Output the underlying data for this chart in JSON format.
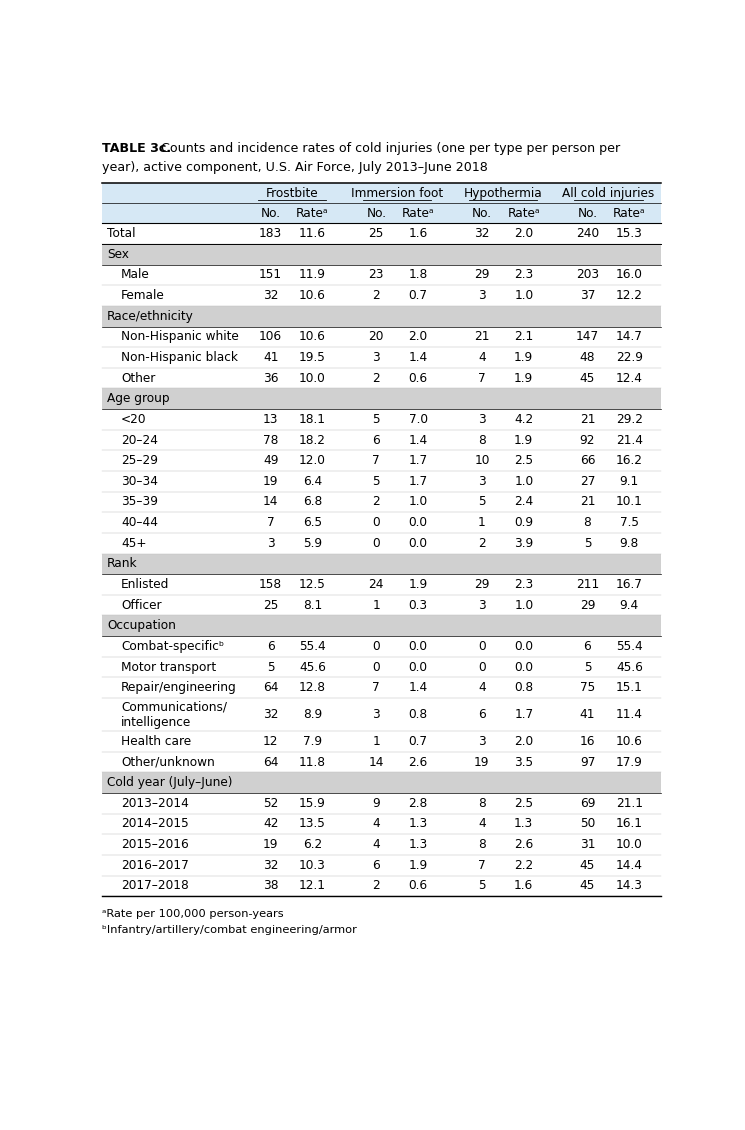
{
  "header_bg": "#d6e8f5",
  "section_bg": "#d0d0d0",
  "col_group_labels": [
    "Frostbite",
    "Immersion foot",
    "Hypothermia",
    "All cold injuries"
  ],
  "col_sub_labels": [
    "No.",
    "Rateᵃ",
    "No.",
    "Rateᵃ",
    "No.",
    "Rateᵃ",
    "No.",
    "Rateᵃ"
  ],
  "rows": [
    {
      "label": "Total",
      "indent": 0,
      "section": false,
      "data": [
        "183",
        "11.6",
        "25",
        "1.6",
        "32",
        "2.0",
        "240",
        "15.3"
      ]
    },
    {
      "label": "Sex",
      "indent": 0,
      "section": true,
      "data": []
    },
    {
      "label": "Male",
      "indent": 1,
      "section": false,
      "data": [
        "151",
        "11.9",
        "23",
        "1.8",
        "29",
        "2.3",
        "203",
        "16.0"
      ]
    },
    {
      "label": "Female",
      "indent": 1,
      "section": false,
      "data": [
        "32",
        "10.6",
        "2",
        "0.7",
        "3",
        "1.0",
        "37",
        "12.2"
      ]
    },
    {
      "label": "Race/ethnicity",
      "indent": 0,
      "section": true,
      "data": []
    },
    {
      "label": "Non-Hispanic white",
      "indent": 1,
      "section": false,
      "data": [
        "106",
        "10.6",
        "20",
        "2.0",
        "21",
        "2.1",
        "147",
        "14.7"
      ]
    },
    {
      "label": "Non-Hispanic black",
      "indent": 1,
      "section": false,
      "data": [
        "41",
        "19.5",
        "3",
        "1.4",
        "4",
        "1.9",
        "48",
        "22.9"
      ]
    },
    {
      "label": "Other",
      "indent": 1,
      "section": false,
      "data": [
        "36",
        "10.0",
        "2",
        "0.6",
        "7",
        "1.9",
        "45",
        "12.4"
      ]
    },
    {
      "label": "Age group",
      "indent": 0,
      "section": true,
      "data": []
    },
    {
      "label": "<20",
      "indent": 1,
      "section": false,
      "data": [
        "13",
        "18.1",
        "5",
        "7.0",
        "3",
        "4.2",
        "21",
        "29.2"
      ]
    },
    {
      "label": "20–24",
      "indent": 1,
      "section": false,
      "data": [
        "78",
        "18.2",
        "6",
        "1.4",
        "8",
        "1.9",
        "92",
        "21.4"
      ]
    },
    {
      "label": "25–29",
      "indent": 1,
      "section": false,
      "data": [
        "49",
        "12.0",
        "7",
        "1.7",
        "10",
        "2.5",
        "66",
        "16.2"
      ]
    },
    {
      "label": "30–34",
      "indent": 1,
      "section": false,
      "data": [
        "19",
        "6.4",
        "5",
        "1.7",
        "3",
        "1.0",
        "27",
        "9.1"
      ]
    },
    {
      "label": "35–39",
      "indent": 1,
      "section": false,
      "data": [
        "14",
        "6.8",
        "2",
        "1.0",
        "5",
        "2.4",
        "21",
        "10.1"
      ]
    },
    {
      "label": "40–44",
      "indent": 1,
      "section": false,
      "data": [
        "7",
        "6.5",
        "0",
        "0.0",
        "1",
        "0.9",
        "8",
        "7.5"
      ]
    },
    {
      "label": "45+",
      "indent": 1,
      "section": false,
      "data": [
        "3",
        "5.9",
        "0",
        "0.0",
        "2",
        "3.9",
        "5",
        "9.8"
      ]
    },
    {
      "label": "Rank",
      "indent": 0,
      "section": true,
      "data": []
    },
    {
      "label": "Enlisted",
      "indent": 1,
      "section": false,
      "data": [
        "158",
        "12.5",
        "24",
        "1.9",
        "29",
        "2.3",
        "211",
        "16.7"
      ]
    },
    {
      "label": "Officer",
      "indent": 1,
      "section": false,
      "data": [
        "25",
        "8.1",
        "1",
        "0.3",
        "3",
        "1.0",
        "29",
        "9.4"
      ]
    },
    {
      "label": "Occupation",
      "indent": 0,
      "section": true,
      "data": []
    },
    {
      "label": "Combat-specificᵇ",
      "indent": 1,
      "section": false,
      "data": [
        "6",
        "55.4",
        "0",
        "0.0",
        "0",
        "0.0",
        "6",
        "55.4"
      ]
    },
    {
      "label": "Motor transport",
      "indent": 1,
      "section": false,
      "data": [
        "5",
        "45.6",
        "0",
        "0.0",
        "0",
        "0.0",
        "5",
        "45.6"
      ]
    },
    {
      "label": "Repair/engineering",
      "indent": 1,
      "section": false,
      "data": [
        "64",
        "12.8",
        "7",
        "1.4",
        "4",
        "0.8",
        "75",
        "15.1"
      ]
    },
    {
      "label": "Communications/\nintelligence",
      "indent": 1,
      "section": false,
      "data": [
        "32",
        "8.9",
        "3",
        "0.8",
        "6",
        "1.7",
        "41",
        "11.4"
      ]
    },
    {
      "label": "Health care",
      "indent": 1,
      "section": false,
      "data": [
        "12",
        "7.9",
        "1",
        "0.7",
        "3",
        "2.0",
        "16",
        "10.6"
      ]
    },
    {
      "label": "Other/unknown",
      "indent": 1,
      "section": false,
      "data": [
        "64",
        "11.8",
        "14",
        "2.6",
        "19",
        "3.5",
        "97",
        "17.9"
      ]
    },
    {
      "label": "Cold year (July–June)",
      "indent": 0,
      "section": true,
      "data": []
    },
    {
      "label": "2013–2014",
      "indent": 1,
      "section": false,
      "data": [
        "52",
        "15.9",
        "9",
        "2.8",
        "8",
        "2.5",
        "69",
        "21.1"
      ]
    },
    {
      "label": "2014–2015",
      "indent": 1,
      "section": false,
      "data": [
        "42",
        "13.5",
        "4",
        "1.3",
        "4",
        "1.3",
        "50",
        "16.1"
      ]
    },
    {
      "label": "2015–2016",
      "indent": 1,
      "section": false,
      "data": [
        "19",
        "6.2",
        "4",
        "1.3",
        "8",
        "2.6",
        "31",
        "10.0"
      ]
    },
    {
      "label": "2016–2017",
      "indent": 1,
      "section": false,
      "data": [
        "32",
        "10.3",
        "6",
        "1.9",
        "7",
        "2.2",
        "45",
        "14.4"
      ]
    },
    {
      "label": "2017–2018",
      "indent": 1,
      "section": false,
      "data": [
        "38",
        "12.1",
        "2",
        "0.6",
        "5",
        "1.6",
        "45",
        "14.3"
      ]
    }
  ],
  "footnote_a": "ᵃRate per 100,000 person-years",
  "footnote_b": "ᵇInfantry/artillery/combat engineering/armor"
}
